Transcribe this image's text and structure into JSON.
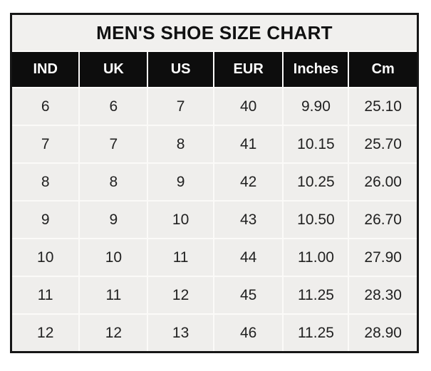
{
  "page": {
    "background_color": "#ffffff",
    "border_color": "#161616",
    "title_bg_color": "#f1f0ee",
    "header_bg_color": "#0d0d0d",
    "header_text_color": "#ffffff",
    "cell_bg_color": "#efeeec",
    "cell_text_color": "#212121",
    "gridline_color": "#fbfaf8"
  },
  "table": {
    "title": "MEN'S SHOE SIZE CHART",
    "headers": [
      "IND",
      "UK",
      "US",
      "EUR",
      "Inches",
      "Cm"
    ],
    "rows": [
      [
        "6",
        "6",
        "7",
        "40",
        "9.90",
        "25.10"
      ],
      [
        "7",
        "7",
        "8",
        "41",
        "10.15",
        "25.70"
      ],
      [
        "8",
        "8",
        "9",
        "42",
        "10.25",
        "26.00"
      ],
      [
        "9",
        "9",
        "10",
        "43",
        "10.50",
        "26.70"
      ],
      [
        "10",
        "10",
        "11",
        "44",
        "11.00",
        "27.90"
      ],
      [
        "11",
        "11",
        "12",
        "45",
        "11.25",
        "28.30"
      ],
      [
        "12",
        "12",
        "13",
        "46",
        "11.25",
        "28.90"
      ]
    ]
  },
  "chart_data": {
    "type": "table",
    "title": "MEN'S SHOE SIZE CHART",
    "columns": [
      "IND",
      "UK",
      "US",
      "EUR",
      "Inches",
      "Cm"
    ],
    "rows": [
      [
        6,
        6,
        7,
        40,
        9.9,
        25.1
      ],
      [
        7,
        7,
        8,
        41,
        10.15,
        25.7
      ],
      [
        8,
        8,
        9,
        42,
        10.25,
        26.0
      ],
      [
        9,
        9,
        10,
        43,
        10.5,
        26.7
      ],
      [
        10,
        10,
        11,
        44,
        11.0,
        27.9
      ],
      [
        11,
        11,
        12,
        45,
        11.25,
        28.3
      ],
      [
        12,
        12,
        13,
        46,
        11.25,
        28.9
      ]
    ]
  }
}
